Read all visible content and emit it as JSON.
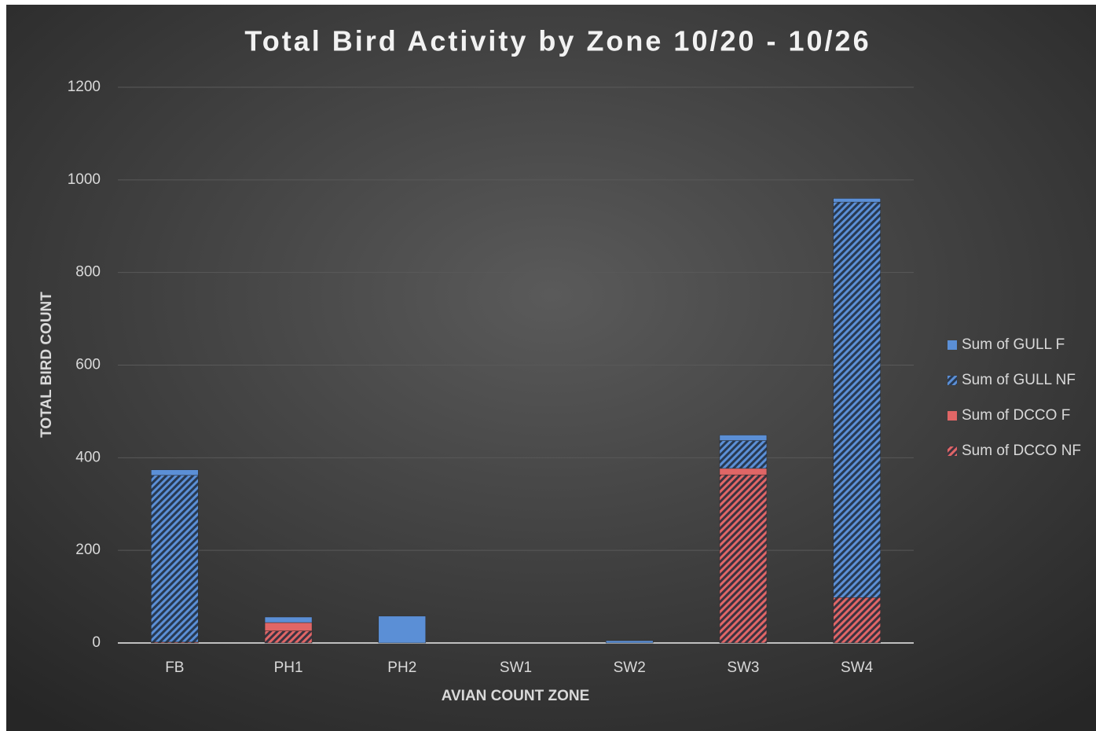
{
  "chart_data": {
    "type": "stacked-bar",
    "title": "Total Bird Activity by Zone 10/20 - 10/26",
    "x_label": "AVIAN COUNT ZONE",
    "y_label": "TOTAL BIRD COUNT",
    "categories": [
      "FB",
      "PH1",
      "PH2",
      "SW1",
      "SW2",
      "SW3",
      "SW4"
    ],
    "series": [
      {
        "name": "Sum of GULL F",
        "color": "#5b8fd6",
        "hatched": false,
        "values": [
          12,
          12,
          58,
          0,
          5,
          12,
          8
        ]
      },
      {
        "name": "Sum of GULL NF",
        "color": "#5b8fd6",
        "hatched": true,
        "values": [
          360,
          0,
          0,
          0,
          0,
          60,
          854
        ]
      },
      {
        "name": "Sum of DCCO F",
        "color": "#e06666",
        "hatched": false,
        "values": [
          0,
          18,
          0,
          0,
          0,
          14,
          0
        ]
      },
      {
        "name": "Sum of DCCO NF",
        "color": "#e06666",
        "hatched": true,
        "values": [
          2,
          26,
          0,
          0,
          0,
          363,
          98
        ]
      }
    ],
    "ylim": [
      0,
      1200
    ],
    "yticks": [
      0,
      200,
      400,
      600,
      800,
      1000,
      1200
    ],
    "grid": true,
    "legend": "right"
  }
}
